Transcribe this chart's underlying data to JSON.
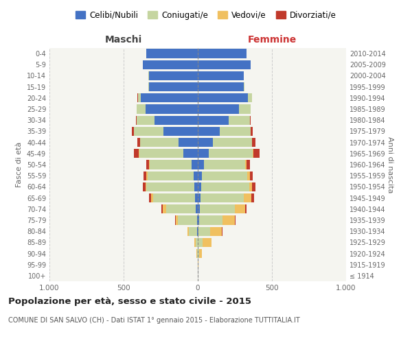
{
  "age_groups": [
    "100+",
    "95-99",
    "90-94",
    "85-89",
    "80-84",
    "75-79",
    "70-74",
    "65-69",
    "60-64",
    "55-59",
    "50-54",
    "45-49",
    "40-44",
    "35-39",
    "30-34",
    "25-29",
    "20-24",
    "15-19",
    "10-14",
    "5-9",
    "0-4"
  ],
  "birth_years": [
    "≤ 1914",
    "1915-1919",
    "1920-1924",
    "1925-1929",
    "1930-1934",
    "1935-1939",
    "1940-1944",
    "1945-1949",
    "1950-1954",
    "1955-1959",
    "1960-1964",
    "1965-1969",
    "1970-1974",
    "1975-1979",
    "1980-1984",
    "1985-1989",
    "1990-1994",
    "1995-1999",
    "2000-2004",
    "2005-2009",
    "2010-2014"
  ],
  "maschi": {
    "celibi": [
      0,
      0,
      0,
      1,
      3,
      5,
      15,
      20,
      25,
      30,
      40,
      95,
      130,
      230,
      290,
      350,
      385,
      330,
      330,
      370,
      345
    ],
    "coniugati": [
      0,
      0,
      5,
      15,
      55,
      130,
      200,
      280,
      320,
      310,
      285,
      300,
      260,
      200,
      120,
      60,
      20,
      5,
      2,
      1,
      0
    ],
    "vedovi": [
      0,
      0,
      2,
      5,
      10,
      15,
      20,
      15,
      5,
      5,
      3,
      2,
      1,
      1,
      0,
      0,
      0,
      0,
      0,
      0,
      0
    ],
    "divorziati": [
      0,
      0,
      0,
      0,
      1,
      2,
      10,
      15,
      20,
      20,
      18,
      35,
      18,
      15,
      8,
      3,
      1,
      0,
      0,
      0,
      0
    ]
  },
  "femmine": {
    "nubili": [
      0,
      0,
      1,
      2,
      4,
      8,
      15,
      20,
      25,
      30,
      40,
      75,
      100,
      150,
      210,
      280,
      340,
      310,
      310,
      355,
      330
    ],
    "coniugate": [
      0,
      1,
      8,
      30,
      80,
      160,
      235,
      290,
      320,
      305,
      280,
      295,
      265,
      205,
      140,
      75,
      25,
      5,
      2,
      1,
      0
    ],
    "vedove": [
      0,
      2,
      20,
      60,
      80,
      80,
      70,
      50,
      20,
      15,
      10,
      5,
      2,
      1,
      0,
      0,
      0,
      0,
      0,
      0,
      0
    ],
    "divorziate": [
      0,
      0,
      0,
      1,
      2,
      5,
      10,
      18,
      22,
      22,
      20,
      40,
      20,
      15,
      8,
      3,
      1,
      0,
      0,
      0,
      0
    ]
  },
  "colors": {
    "celibi_nubili": "#4472c4",
    "coniugati_e": "#c5d5a0",
    "vedovi_e": "#f0c060",
    "divorziati_e": "#c0392b"
  },
  "xlim": 1000,
  "title": "Popolazione per età, sesso e stato civile - 2015",
  "subtitle": "COMUNE DI SAN SALVO (CH) - Dati ISTAT 1° gennaio 2015 - Elaborazione TUTTITALIA.IT",
  "ylabel_left": "Fasce di età",
  "ylabel_right": "Anni di nascita",
  "xlabel_left": "Maschi",
  "xlabel_right": "Femmine",
  "legend_labels": [
    "Celibi/Nubili",
    "Coniugati/e",
    "Vedovi/e",
    "Divorziati/e"
  ],
  "background_color": "#ffffff",
  "plot_bg_color": "#f5f5f0",
  "grid_color": "#cccccc"
}
